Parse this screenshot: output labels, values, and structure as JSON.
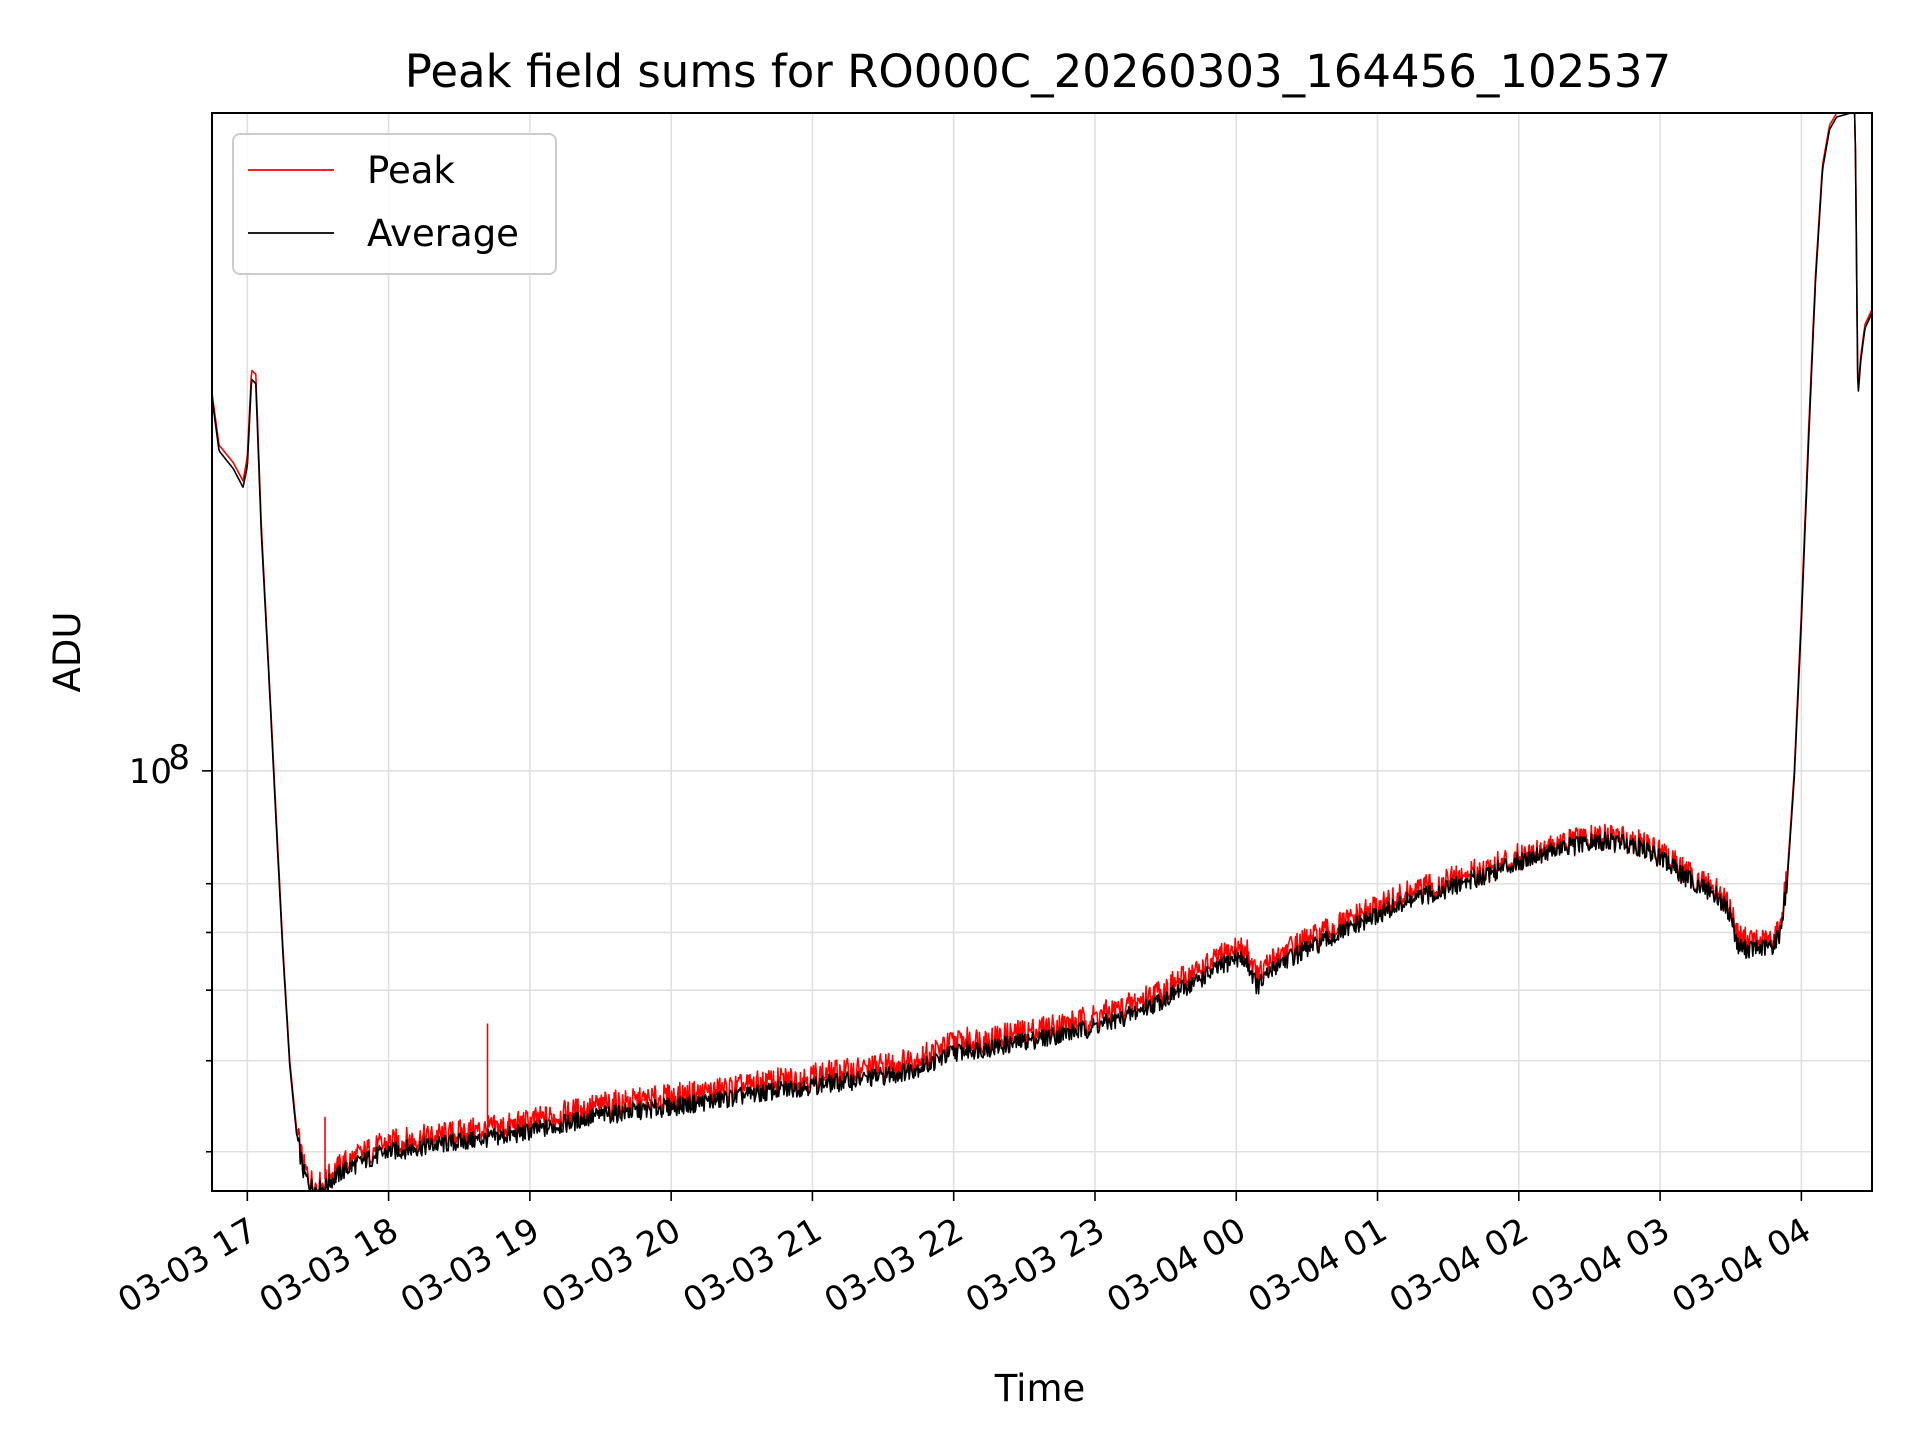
{
  "chart_data": {
    "type": "line",
    "title": "Peak field sums for RO000C_20260303_164456_102537",
    "xlabel": "Time",
    "ylabel": "ADU",
    "yscale": "log",
    "xlim": [
      16.75,
      28.5
    ],
    "ylim": [
      26500000,
      800000000
    ],
    "x_ticks": [
      {
        "value": 17,
        "label": "03-03 17"
      },
      {
        "value": 18,
        "label": "03-03 18"
      },
      {
        "value": 19,
        "label": "03-03 19"
      },
      {
        "value": 20,
        "label": "03-03 20"
      },
      {
        "value": 21,
        "label": "03-03 21"
      },
      {
        "value": 22,
        "label": "03-03 22"
      },
      {
        "value": 23,
        "label": "03-03 23"
      },
      {
        "value": 24,
        "label": "03-04 00"
      },
      {
        "value": 25,
        "label": "03-04 01"
      },
      {
        "value": 26,
        "label": "03-04 02"
      },
      {
        "value": 27,
        "label": "03-04 03"
      },
      {
        "value": 28,
        "label": "03-04 04"
      }
    ],
    "y_major_ticks": [
      {
        "value": 100000000,
        "base": "10",
        "exponent": "8"
      }
    ],
    "y_minor_ticks": [
      30000000,
      40000000,
      50000000,
      60000000,
      70000000
    ],
    "grid": true,
    "legend": {
      "position": "top-left",
      "entries": [
        "Peak",
        "Average"
      ]
    },
    "series": [
      {
        "name": "Peak",
        "color": "#ff0000",
        "x": [
          16.75,
          16.8,
          16.9,
          16.97,
          17.0,
          17.03,
          17.06,
          17.1,
          17.15,
          17.2,
          17.25,
          17.3,
          17.35,
          17.4,
          17.45,
          17.5,
          17.55,
          17.6,
          17.7,
          17.85,
          18.0,
          18.3,
          18.6,
          18.9,
          19.2,
          19.5,
          19.8,
          20.1,
          20.4,
          20.7,
          21.0,
          21.3,
          21.6,
          21.8,
          21.9,
          22.0,
          22.3,
          22.6,
          22.9,
          23.2,
          23.5,
          23.8,
          24.0,
          24.08,
          24.15,
          24.3,
          24.6,
          24.9,
          25.2,
          25.5,
          25.8,
          26.1,
          26.4,
          26.6,
          26.8,
          27.0,
          27.2,
          27.4,
          27.5,
          27.55,
          27.6,
          27.7,
          27.8,
          27.85,
          27.9,
          27.95,
          28.0,
          28.05,
          28.1,
          28.15,
          28.2,
          28.25,
          28.3,
          28.35,
          28.38,
          28.4,
          28.42,
          28.45,
          28.5
        ],
        "y": [
          330000000,
          280000000,
          265000000,
          250000000,
          270000000,
          355000000,
          350000000,
          215000000,
          140000000,
          90000000,
          58000000,
          40000000,
          32000000,
          28500000,
          27300000,
          26900000,
          27200000,
          28000000,
          29000000,
          30000000,
          30800000,
          31400000,
          32000000,
          32600000,
          33600000,
          34700000,
          35200000,
          35800000,
          36500000,
          37300000,
          38100000,
          38700000,
          39600000,
          40600000,
          41400000,
          42400000,
          43000000,
          44100000,
          45300000,
          47200000,
          50200000,
          54000000,
          57000000,
          56500000,
          52000000,
          56000000,
          59500000,
          63500000,
          67500000,
          70500000,
          73500000,
          77500000,
          80000000,
          81000000,
          80500000,
          77000000,
          72000000,
          68500000,
          64500000,
          59500000,
          58500000,
          58000000,
          58500000,
          61000000,
          72000000,
          100000000,
          165000000,
          290000000,
          480000000,
          680000000,
          770000000,
          800000000,
          800000000,
          800000000,
          800000000,
          330000000,
          370000000,
          410000000,
          430000000
        ]
      },
      {
        "name": "Average",
        "color": "#000000",
        "x": [
          16.75,
          16.8,
          16.9,
          16.97,
          17.0,
          17.03,
          17.06,
          17.1,
          17.15,
          17.2,
          17.25,
          17.3,
          17.35,
          17.4,
          17.45,
          17.5,
          17.55,
          17.6,
          17.7,
          17.85,
          18.0,
          18.3,
          18.6,
          18.9,
          19.2,
          19.5,
          19.8,
          20.1,
          20.4,
          20.7,
          21.0,
          21.3,
          21.6,
          21.8,
          21.9,
          22.0,
          22.3,
          22.6,
          22.9,
          23.2,
          23.5,
          23.8,
          24.0,
          24.08,
          24.15,
          24.3,
          24.6,
          24.9,
          25.2,
          25.5,
          25.8,
          26.1,
          26.4,
          26.6,
          26.8,
          27.0,
          27.2,
          27.4,
          27.5,
          27.55,
          27.6,
          27.7,
          27.8,
          27.85,
          27.9,
          27.95,
          28.0,
          28.05,
          28.1,
          28.15,
          28.2,
          28.25,
          28.3,
          28.35,
          28.38,
          28.4,
          28.42,
          28.45,
          28.5
        ],
        "y": [
          325000000,
          275000000,
          260000000,
          245000000,
          262000000,
          345000000,
          340000000,
          210000000,
          138000000,
          88000000,
          57000000,
          39500000,
          31500000,
          28000000,
          26900000,
          26600000,
          26800000,
          27500000,
          28400000,
          29300000,
          30000000,
          30600000,
          31100000,
          31700000,
          32600000,
          33700000,
          34200000,
          34800000,
          35500000,
          36300000,
          37000000,
          37600000,
          38400000,
          39400000,
          40200000,
          41100000,
          41800000,
          42900000,
          44000000,
          45800000,
          48700000,
          52500000,
          55500000,
          54500000,
          50500000,
          54500000,
          58000000,
          62000000,
          66000000,
          69000000,
          72500000,
          76500000,
          79000000,
          80000000,
          79500000,
          76000000,
          71000000,
          67500000,
          63500000,
          57500000,
          57000000,
          57000000,
          57500000,
          60000000,
          70500000,
          98000000,
          160000000,
          280000000,
          470000000,
          670000000,
          760000000,
          790000000,
          795000000,
          800000000,
          800000000,
          325000000,
          365000000,
          405000000,
          425000000
        ]
      }
    ]
  }
}
